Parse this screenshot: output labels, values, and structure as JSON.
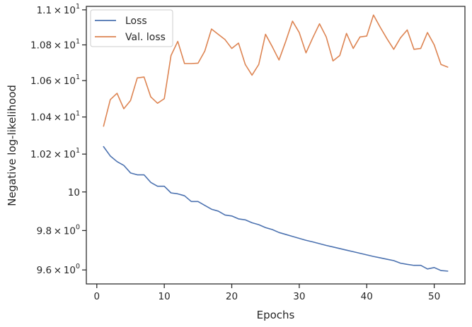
{
  "chart_data": {
    "type": "line",
    "title": "",
    "xlabel": "Epochs",
    "ylabel": "Negative log-likelihood",
    "x_scale": "linear",
    "y_scale": "log",
    "xlim": [
      -1.55,
      54.55
    ],
    "ylim": [
      9.53,
      11.02
    ],
    "grid": false,
    "legend_location": "upper left",
    "x_ticks": [
      {
        "value": 0,
        "label": "0"
      },
      {
        "value": 10,
        "label": "10"
      },
      {
        "value": 20,
        "label": "20"
      },
      {
        "value": 30,
        "label": "30"
      },
      {
        "value": 40,
        "label": "40"
      },
      {
        "value": 50,
        "label": "50"
      }
    ],
    "y_ticks": [
      {
        "value": 9.6,
        "mant": "9.6",
        "exp": "0"
      },
      {
        "value": 9.8,
        "mant": "9.8",
        "exp": "0"
      },
      {
        "value": 10.0,
        "plain": "10"
      },
      {
        "value": 10.2,
        "mant": "1.02",
        "exp": "1"
      },
      {
        "value": 10.4,
        "mant": "1.04",
        "exp": "1"
      },
      {
        "value": 10.6,
        "mant": "1.06",
        "exp": "1"
      },
      {
        "value": 10.8,
        "mant": "1.08",
        "exp": "1"
      },
      {
        "value": 11.0,
        "mant": "1.1",
        "exp": "1"
      }
    ],
    "series": [
      {
        "name": "Loss",
        "color": "#4c72b0",
        "x": [
          1,
          2,
          3,
          4,
          5,
          6,
          7,
          8,
          9,
          10,
          11,
          12,
          13,
          14,
          15,
          16,
          17,
          18,
          19,
          20,
          21,
          22,
          23,
          24,
          25,
          26,
          27,
          28,
          29,
          30,
          31,
          32,
          33,
          34,
          35,
          36,
          37,
          38,
          39,
          40,
          41,
          42,
          43,
          44,
          45,
          46,
          47,
          48,
          49,
          50,
          51,
          52
        ],
        "y": [
          10.24,
          10.19,
          10.16,
          10.14,
          10.1,
          10.09,
          10.09,
          10.05,
          10.03,
          10.03,
          9.995,
          9.99,
          9.98,
          9.95,
          9.95,
          9.93,
          9.91,
          9.9,
          9.88,
          9.875,
          9.86,
          9.855,
          9.84,
          9.83,
          9.815,
          9.805,
          9.79,
          9.78,
          9.77,
          9.76,
          9.75,
          9.742,
          9.733,
          9.724,
          9.716,
          9.708,
          9.7,
          9.692,
          9.684,
          9.676,
          9.668,
          9.661,
          9.654,
          9.647,
          9.634,
          9.628,
          9.623,
          9.623,
          9.605,
          9.612,
          9.597,
          9.594
        ]
      },
      {
        "name": "Val. loss",
        "color": "#dd8452",
        "x": [
          1,
          2,
          3,
          4,
          5,
          6,
          7,
          8,
          9,
          10,
          11,
          12,
          13,
          14,
          15,
          16,
          17,
          18,
          19,
          20,
          21,
          22,
          23,
          24,
          25,
          26,
          27,
          28,
          29,
          30,
          31,
          32,
          33,
          34,
          35,
          36,
          37,
          38,
          39,
          40,
          41,
          42,
          43,
          44,
          45,
          46,
          47,
          48,
          49,
          50,
          51,
          52
        ],
        "y": [
          10.35,
          10.495,
          10.53,
          10.445,
          10.49,
          10.615,
          10.62,
          10.51,
          10.475,
          10.5,
          10.74,
          10.82,
          10.695,
          10.695,
          10.697,
          10.765,
          10.89,
          10.86,
          10.83,
          10.78,
          10.81,
          10.69,
          10.63,
          10.69,
          10.86,
          10.79,
          10.715,
          10.82,
          10.935,
          10.87,
          10.755,
          10.84,
          10.92,
          10.845,
          10.71,
          10.74,
          10.865,
          10.78,
          10.845,
          10.85,
          10.97,
          10.9,
          10.835,
          10.775,
          10.84,
          10.885,
          10.775,
          10.78,
          10.87,
          10.8,
          10.69,
          10.675
        ]
      }
    ]
  }
}
